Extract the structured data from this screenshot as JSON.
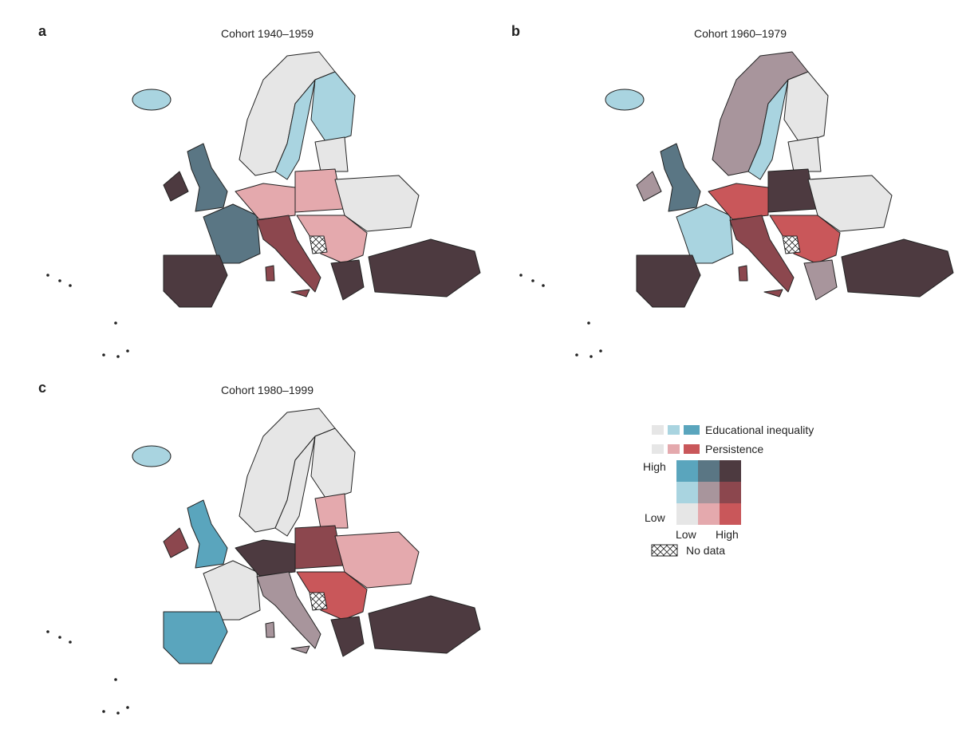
{
  "panels": [
    {
      "label": "a",
      "title": "Cohort 1940–1959"
    },
    {
      "label": "b",
      "title": "Cohort 1960–1979"
    },
    {
      "label": "c",
      "title": "Cohort 1980–1999"
    }
  ],
  "legend": {
    "rows": [
      "Educational inequality",
      "Persistence"
    ],
    "y_high": "High",
    "y_low": "Low",
    "x_low": "Low",
    "x_high": "High",
    "no_data": "No data"
  }
}
